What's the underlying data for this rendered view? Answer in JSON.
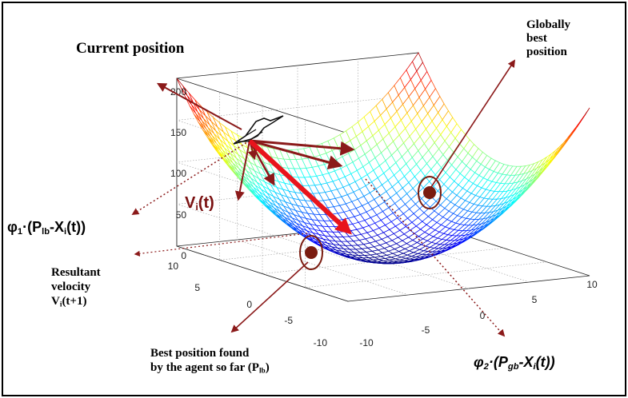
{
  "annotations": {
    "current_position": "Current position",
    "globally_best": [
      "Globally",
      "best",
      "position"
    ],
    "phi1": {
      "main": "φ",
      "sub1": "1",
      "mid": "·(P",
      "sub2": "lb",
      "mid2": "-X",
      "sub3": "i",
      "end": "(t))"
    },
    "velocity": {
      "main": "V",
      "sub": "i",
      "end": "(t)"
    },
    "resultant": {
      "line1": "Resultant",
      "line2": "velocity",
      "v_main": "V",
      "v_sub": "i",
      "v_end": "(t+1)"
    },
    "best_found": {
      "line1": "Best position found",
      "line2": "by the agent so far (P",
      "sub": "lb",
      "end": ")"
    },
    "phi2": {
      "main": "φ",
      "sub1": "2",
      "mid": "·(P",
      "sub2": "gb",
      "mid2": "-X",
      "sub3": "i",
      "end": "(t))"
    }
  },
  "axes": {
    "z_ticks": [
      "0",
      "50",
      "100",
      "150",
      "200"
    ],
    "y_ticks": [
      "10",
      "5",
      "0",
      "-5",
      "-10"
    ],
    "x_ticks": [
      "-10",
      "-5",
      "0",
      "5",
      "10"
    ]
  },
  "colors": {
    "arrow_dark": "#8b1a1a",
    "arrow_bright": "#e8141c",
    "marker": "#7a1c10",
    "frame": "#000000"
  },
  "icons": {
    "agent": "bird-agent-icon"
  }
}
